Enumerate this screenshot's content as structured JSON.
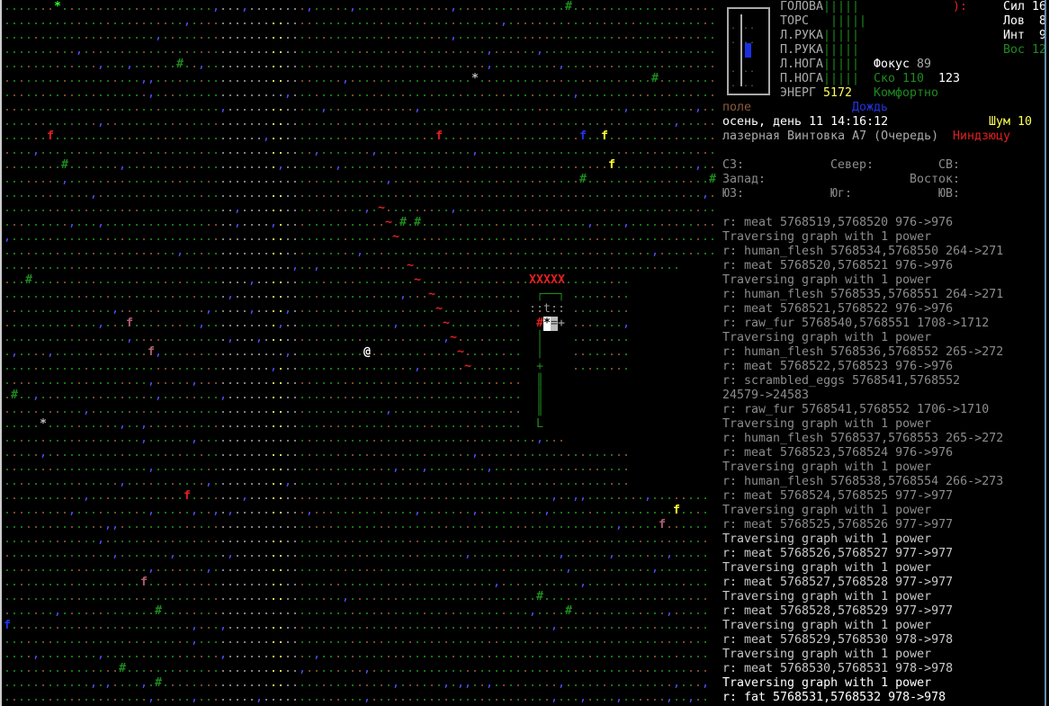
{
  "colors": {
    "grass": "#1e8a1e",
    "dirt": "#8a5a3a",
    "road": "#9a9a9a",
    "road_line": "#ffff66",
    "water_puddle": "#5555ff",
    "hostile": "#e02020",
    "foliage": "#1e8a1e"
  },
  "map": {
    "glyphs": {
      "ground": ".",
      "puddle": ",",
      "tree": "#",
      "player": "@",
      "blood_trail": "~",
      "fungal": "f",
      "rubble": "*",
      "barricade": "X",
      "vehicle_frame": "|",
      "turret": "t",
      "wall_corner": "L",
      "door": "+",
      "seat": "="
    },
    "player_glyph": "@"
  },
  "status": {
    "body_parts": [
      {
        "label": "ГОЛОВА",
        "bar": "|||||"
      },
      {
        "label": "ТОРС",
        "bar": " |||||"
      },
      {
        "label": "Л.РУКА",
        "bar": "|||||"
      },
      {
        "label": "П.РУКА",
        "bar": "|||||"
      },
      {
        "label": "Л.НОГА",
        "bar": "|||||"
      },
      {
        "label": "П.НОГА",
        "bar": "|||||"
      }
    ],
    "power_label": "ЭНЕРГ",
    "power_value": "5172",
    "mood": "):",
    "stats": [
      {
        "label": "Сил",
        "value": "16"
      },
      {
        "label": "Лов",
        "value": "8"
      },
      {
        "label": "Инт",
        "value": "9"
      },
      {
        "label": "Вос",
        "value": "12"
      }
    ],
    "focus_label": "Фокус",
    "focus_value": "89",
    "speed_label": "Ско",
    "speed_value": "110",
    "move_cost": "123",
    "temperature": "Комфортно",
    "terrain": "поле",
    "weather": "Дождь",
    "date_time": "осень, день 11 14:16:12",
    "noise_label": "Шум",
    "noise_value": "10",
    "weapon": "лазерная Винтовка А7 (Очередь)",
    "style": "Ниндзюцу",
    "compass": {
      "nw": "СЗ:",
      "n": "Север:",
      "ne": "СВ:",
      "w": "Запад:",
      "e": "Восток:",
      "sw": "ЮЗ:",
      "s": "Юг:",
      "se": "ЮВ:"
    }
  },
  "log": [
    {
      "text": "r: meat 5768519,5768520 976->976",
      "tone": "old"
    },
    {
      "text": "Traversing graph with 1 power",
      "tone": "old"
    },
    {
      "text": "r: human_flesh 5768534,5768550 264->271",
      "tone": "old"
    },
    {
      "text": "r: meat 5768520,5768521 976->976",
      "tone": "old"
    },
    {
      "text": "Traversing graph with 1 power",
      "tone": "old"
    },
    {
      "text": "r: human_flesh 5768535,5768551 264->271",
      "tone": "old"
    },
    {
      "text": "r: meat 5768521,5768522 976->976",
      "tone": "old"
    },
    {
      "text": "r: raw_fur 5768540,5768551 1708->1712",
      "tone": "old"
    },
    {
      "text": "Traversing graph with 1 power",
      "tone": "old"
    },
    {
      "text": "r: human_flesh 5768536,5768552 265->272",
      "tone": "old"
    },
    {
      "text": "r: meat 5768522,5768523 976->976",
      "tone": "old"
    },
    {
      "text": "r: scrambled_eggs 5768541,5768552",
      "tone": "old"
    },
    {
      "text": "24579->24583",
      "tone": "old"
    },
    {
      "text": "r: raw_fur 5768541,5768552 1706->1710",
      "tone": "old"
    },
    {
      "text": "Traversing graph with 1 power",
      "tone": "old"
    },
    {
      "text": "r: human_flesh 5768537,5768553 265->272",
      "tone": "old"
    },
    {
      "text": "r: meat 5768523,5768524 976->976",
      "tone": "old"
    },
    {
      "text": "Traversing graph with 1 power",
      "tone": "old"
    },
    {
      "text": "r: human_flesh 5768538,5768554 266->273",
      "tone": "old"
    },
    {
      "text": "r: meat 5768524,5768525 977->977",
      "tone": "old"
    },
    {
      "text": "Traversing graph with 1 power",
      "tone": "old"
    },
    {
      "text": "r: meat 5768525,5768526 977->977",
      "tone": "old"
    },
    {
      "text": "Traversing graph with 1 power",
      "tone": "new"
    },
    {
      "text": "r: meat 5768526,5768527 977->977",
      "tone": "new"
    },
    {
      "text": "Traversing graph with 1 power",
      "tone": "new"
    },
    {
      "text": "r: meat 5768527,5768528 977->977",
      "tone": "new"
    },
    {
      "text": "Traversing graph with 1 power",
      "tone": "new"
    },
    {
      "text": "r: meat 5768528,5768529 977->977",
      "tone": "new"
    },
    {
      "text": "Traversing graph with 1 power",
      "tone": "new"
    },
    {
      "text": "r: meat 5768529,5768530 978->978",
      "tone": "new"
    },
    {
      "text": "Traversing graph with 1 power",
      "tone": "new"
    },
    {
      "text": "r: meat 5768530,5768531 978->978",
      "tone": "new"
    },
    {
      "text": "Traversing graph with 1 power",
      "tone": "cur"
    },
    {
      "text": "r: fat 5768531,5768532 978->978",
      "tone": "cur"
    }
  ]
}
